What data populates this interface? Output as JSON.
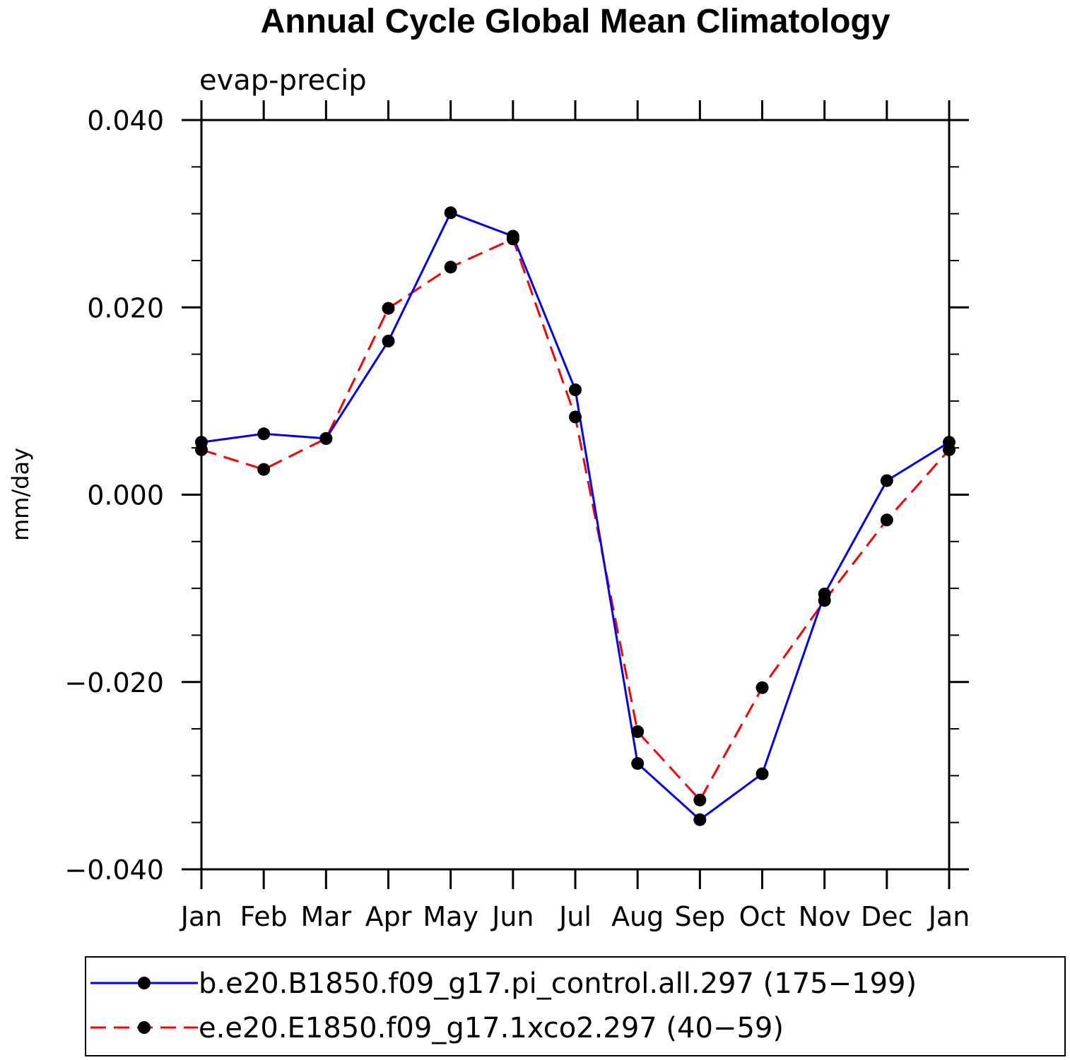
{
  "chart_data": {
    "type": "line",
    "title": "Annual Cycle Global Mean Climatology",
    "subtitle": "evap-precip",
    "xlabel": "",
    "ylabel": "mm/day",
    "categories": [
      "Jan",
      "Feb",
      "Mar",
      "Apr",
      "May",
      "Jun",
      "Jul",
      "Aug",
      "Sep",
      "Oct",
      "Nov",
      "Dec",
      "Jan"
    ],
    "ylim": [
      -0.04,
      0.04
    ],
    "yticks": [
      0.04,
      0.02,
      0.0,
      -0.02,
      -0.04
    ],
    "ytick_labels": [
      "0.040",
      "0.020",
      "0.000",
      "−0.020",
      "−0.040"
    ],
    "grid": false,
    "legend_position": "bottom",
    "series": [
      {
        "name": "b.e20.B1850.f09_g17.pi_control.all.297 (175−199)",
        "color": "#0000ff",
        "dash": "solid",
        "values": [
          0.0056,
          0.0065,
          0.006,
          0.0164,
          0.0301,
          0.0276,
          0.0112,
          -0.0287,
          -0.0347,
          -0.0298,
          -0.0106,
          0.0015,
          0.0056
        ]
      },
      {
        "name": "e.e20.E1850.f09_g17.1xco2.297 (40−59)",
        "color": "#ff0000",
        "dash": "dashed",
        "values": [
          0.0048,
          0.0027,
          0.006,
          0.0199,
          0.0243,
          0.0273,
          0.0083,
          -0.0253,
          -0.0326,
          -0.0206,
          -0.0113,
          -0.0027,
          0.0048
        ]
      }
    ]
  }
}
